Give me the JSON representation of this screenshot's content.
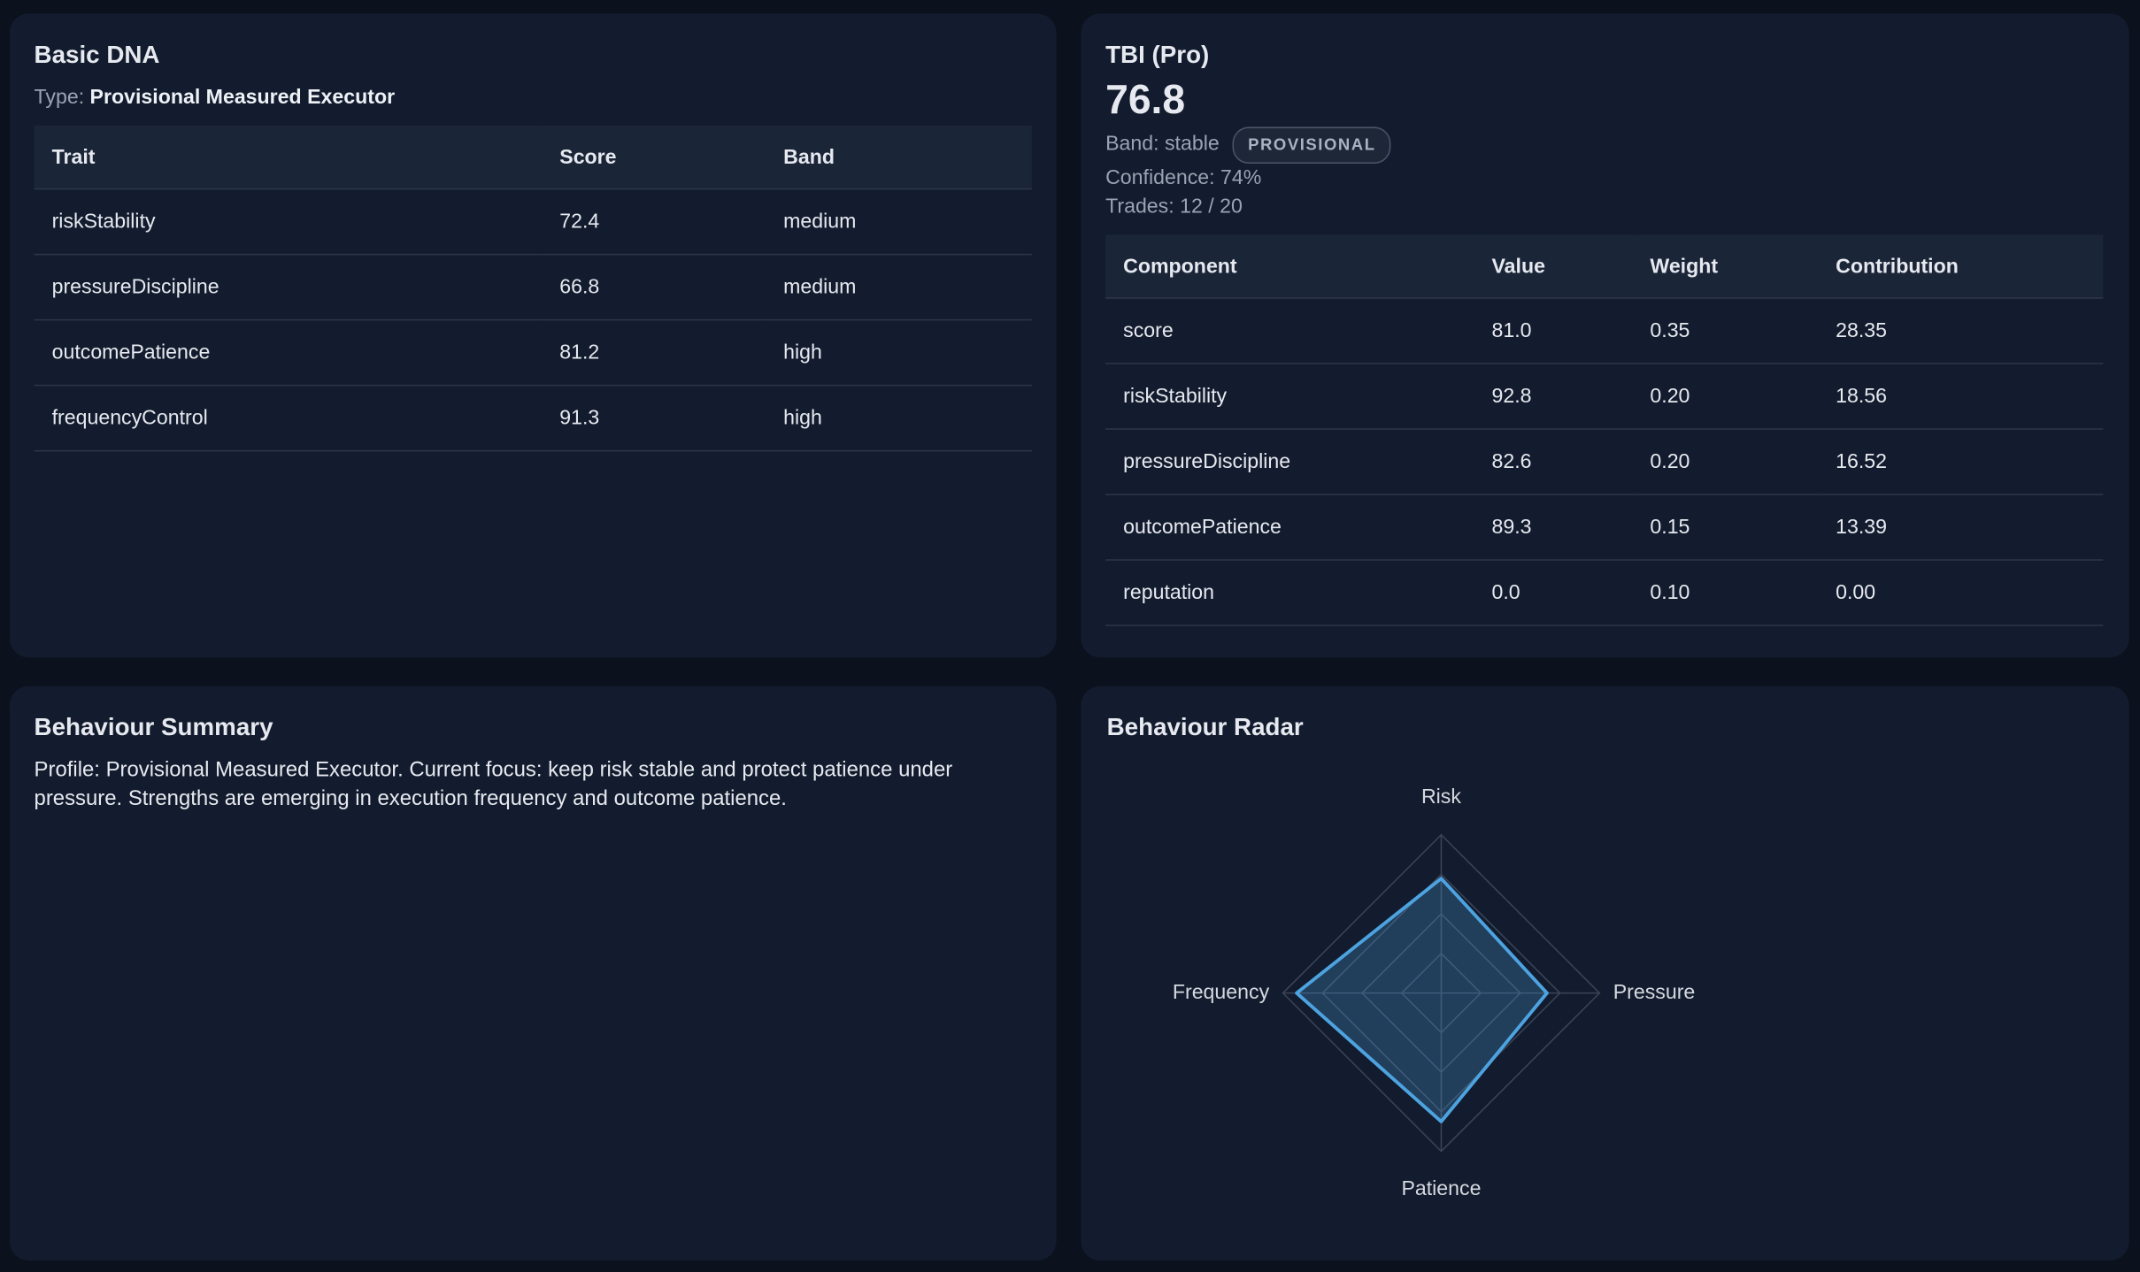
{
  "basic_dna": {
    "title": "Basic DNA",
    "type_label": "Type:",
    "type_value": "Provisional Measured Executor",
    "table": {
      "headers": [
        "Trait",
        "Score",
        "Band"
      ],
      "rows": [
        [
          "riskStability",
          "72.4",
          "medium"
        ],
        [
          "pressureDiscipline",
          "66.8",
          "medium"
        ],
        [
          "outcomePatience",
          "81.2",
          "high"
        ],
        [
          "frequencyControl",
          "91.3",
          "high"
        ]
      ]
    }
  },
  "tbi": {
    "title": "TBI (Pro)",
    "score": "76.8",
    "band": "Band: stable",
    "badge": "PROVISIONAL",
    "confidence": "Confidence: 74%",
    "trades": "Trades: 12 / 20",
    "table": {
      "headers": [
        "Component",
        "Value",
        "Weight",
        "Contribution"
      ],
      "rows": [
        [
          "score",
          "81.0",
          "0.35",
          "28.35"
        ],
        [
          "riskStability",
          "92.8",
          "0.20",
          "18.56"
        ],
        [
          "pressureDiscipline",
          "82.6",
          "0.20",
          "16.52"
        ],
        [
          "outcomePatience",
          "89.3",
          "0.15",
          "13.39"
        ],
        [
          "reputation",
          "0.0",
          "0.10",
          "0.00"
        ]
      ]
    }
  },
  "summary": {
    "title": "Behaviour Summary",
    "text": "Profile: Provisional Measured Executor. Current focus: keep risk stable and protect patience under pressure. Strengths are emerging in execution frequency and outcome patience."
  },
  "chart_data": {
    "type": "radar",
    "title": "Behaviour Radar",
    "categories": [
      "Risk",
      "Pressure",
      "Patience",
      "Frequency"
    ],
    "values": [
      72.4,
      66.8,
      81.2,
      91.3
    ],
    "color": "#4da3e0",
    "rlim": [
      0,
      100
    ],
    "rticks": [
      25,
      50,
      75,
      100
    ]
  }
}
